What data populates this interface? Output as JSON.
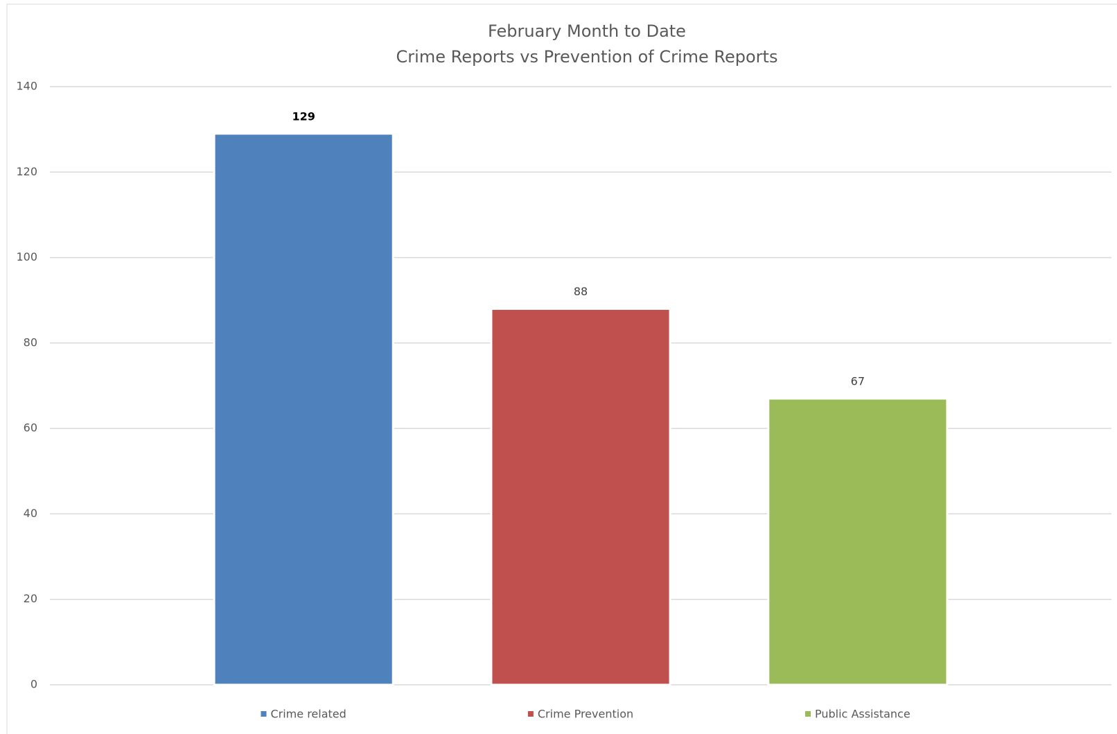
{
  "chart_data": {
    "type": "bar",
    "title": "February Month to Date",
    "subtitle": "Crime Reports vs Prevention of Crime Reports",
    "series": [
      {
        "name": "Crime related",
        "color": "#4f81bd",
        "values": [
          129
        ]
      },
      {
        "name": "Crime Prevention",
        "color": "#c0504d",
        "values": [
          88
        ]
      },
      {
        "name": "Public Assistance",
        "color": "#9bbb59",
        "values": [
          67
        ]
      }
    ],
    "ylim": [
      0,
      140
    ],
    "yticks": [
      0,
      20,
      40,
      60,
      80,
      100,
      120,
      140
    ],
    "grid": true,
    "legend": "bottom"
  }
}
